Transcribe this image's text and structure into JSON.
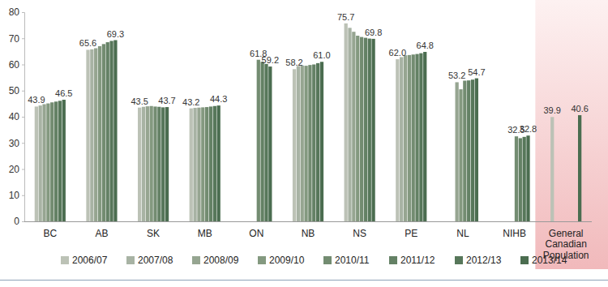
{
  "chart_data": {
    "type": "bar",
    "categories": [
      "BC",
      "AB",
      "SK",
      "MB",
      "ON",
      "NB",
      "NS",
      "PE",
      "NL",
      "NIHB",
      "General Canadian Population"
    ],
    "ylim": [
      0,
      80
    ],
    "yticks": [
      0,
      10,
      20,
      30,
      40,
      50,
      60,
      70,
      80
    ],
    "grid": false,
    "legend": "bottom",
    "series": [
      {
        "name": "2006/07",
        "color": "#bcc2b6",
        "values": [
          43.9,
          65.6,
          43.5,
          43.2,
          null,
          58.2,
          75.7,
          62.0,
          null,
          null,
          39.9
        ],
        "value_labels": [
          "43.9",
          "65.6",
          "43.5",
          "43.2",
          null,
          "58.2",
          "75.7",
          "62.0",
          null,
          null,
          "39.9"
        ]
      },
      {
        "name": "2007/08",
        "color": "#a8b3a4",
        "values": [
          44.3,
          65.8,
          43.8,
          43.4,
          null,
          59.4,
          74.0,
          62.8,
          null,
          null,
          null
        ],
        "value_labels": [
          null,
          null,
          null,
          null,
          null,
          null,
          null,
          null,
          null,
          null,
          null
        ]
      },
      {
        "name": "2008/09",
        "color": "#96a591",
        "values": [
          44.8,
          66.2,
          44.0,
          43.5,
          null,
          59.6,
          72.5,
          63.5,
          53.2,
          null,
          null
        ],
        "value_labels": [
          null,
          null,
          null,
          null,
          null,
          null,
          null,
          null,
          "53.2",
          null,
          null
        ]
      },
      {
        "name": "2009/10",
        "color": "#849980",
        "values": [
          45.1,
          67.0,
          44.1,
          43.6,
          null,
          59.5,
          71.0,
          63.6,
          50.5,
          null,
          null
        ],
        "value_labels": [
          null,
          null,
          null,
          null,
          null,
          null,
          null,
          null,
          null,
          null,
          null
        ]
      },
      {
        "name": "2010/11",
        "color": "#738c71",
        "values": [
          45.5,
          67.8,
          43.9,
          43.7,
          61.8,
          59.8,
          70.5,
          63.8,
          53.8,
          32.5,
          null
        ],
        "value_labels": [
          null,
          null,
          null,
          null,
          "61.8",
          null,
          null,
          null,
          null,
          "32.5",
          null
        ]
      },
      {
        "name": "2011/12",
        "color": "#648165",
        "values": [
          45.8,
          68.5,
          43.8,
          43.9,
          61.0,
          60.0,
          70.2,
          64.0,
          53.9,
          31.8,
          null
        ],
        "value_labels": [
          null,
          null,
          null,
          null,
          null,
          null,
          null,
          null,
          null,
          null,
          null
        ]
      },
      {
        "name": "2012/13",
        "color": "#57775a",
        "values": [
          46.1,
          69.0,
          43.6,
          44.1,
          60.2,
          60.5,
          69.9,
          64.3,
          54.2,
          32.3,
          null
        ],
        "value_labels": [
          null,
          null,
          null,
          null,
          null,
          null,
          null,
          null,
          null,
          null,
          null
        ]
      },
      {
        "name": "2013/14",
        "color": "#4b6d50",
        "values": [
          46.5,
          69.3,
          43.7,
          44.3,
          59.2,
          61.0,
          69.8,
          64.8,
          54.7,
          32.8,
          40.6
        ],
        "value_labels": [
          "46.5",
          "69.3",
          "43.7",
          "44.3",
          "59.2",
          "61.0",
          "69.8",
          "64.8",
          "54.7",
          "32.8",
          "40.6"
        ]
      }
    ]
  }
}
